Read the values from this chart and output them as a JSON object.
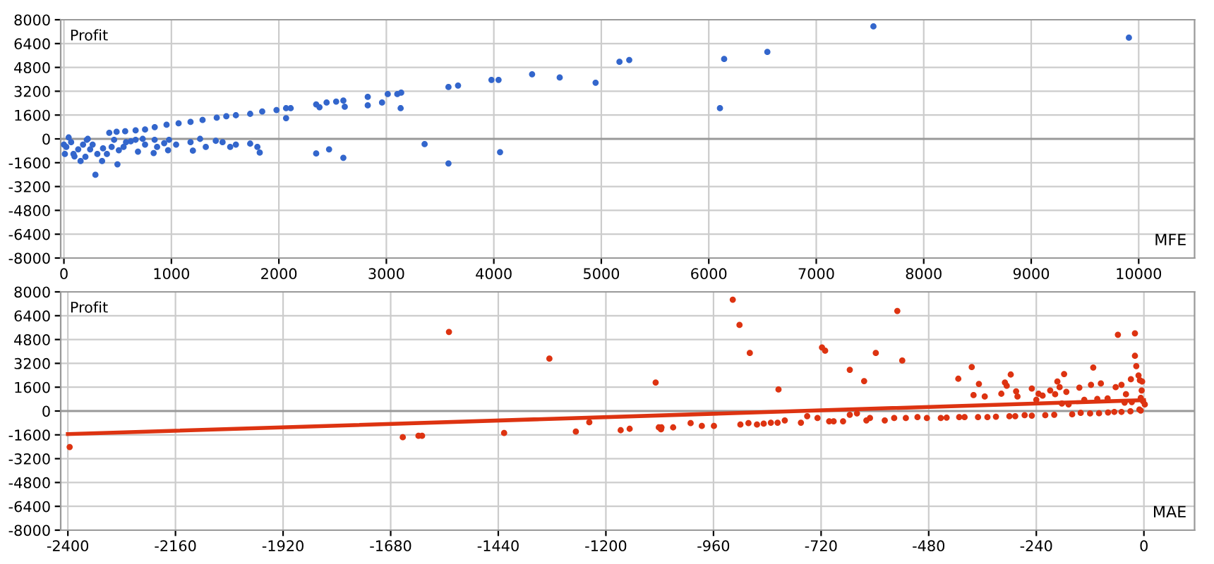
{
  "chart_data": [
    {
      "type": "scatter",
      "xlabel": "MFE",
      "ylabel": "Profit",
      "xlim": [
        -30,
        10520
      ],
      "ylim": [
        -8000,
        8000
      ],
      "xticks": [
        0,
        1000,
        2000,
        3000,
        4000,
        5000,
        6000,
        7000,
        8000,
        9000,
        10000
      ],
      "yticks": [
        -8000,
        -6400,
        -4800,
        -3200,
        -1600,
        0,
        1600,
        3200,
        4800,
        6400,
        8000
      ],
      "grid": true,
      "series": [
        {
          "color": "#3366cc",
          "marker": "circle",
          "x": [
            422,
            490,
            570,
            667,
            755,
            845,
            955,
            1067,
            1178,
            1290,
            1422,
            1511,
            1600,
            1733,
            1845,
            1978,
            2067,
            2110,
            2067,
            2347,
            2378,
            2444,
            2533,
            2600,
            2613,
            2827,
            2827,
            2960,
            3013,
            3102,
            3138,
            3133,
            3578,
            3667,
            3978,
            4044,
            4356,
            4613,
            4947,
            5169,
            5260,
            6104,
            6143,
            6545,
            7532,
            9909,
            3356,
            3578,
            4058,
            2347,
            2467,
            2600,
            1822,
            1800,
            1733,
            1600,
            1547,
            1476,
            1413,
            1320,
            1200,
            1178,
            1267,
            1044,
            969,
            933,
            867,
            835,
            755,
            733,
            689,
            622,
            555,
            511,
            498,
            467,
            400,
            364,
            355,
            311,
            293,
            267,
            213,
            200,
            155,
            98,
            133,
            67,
            22,
            9,
            0,
            89,
            178,
            244,
            444,
            578,
            667,
            844,
            978,
            44,
            222
          ],
          "values": [
            410,
            475,
            510,
            570,
            630,
            790,
            950,
            1045,
            1140,
            1270,
            1425,
            1520,
            1585,
            1680,
            1840,
            1935,
            2060,
            2060,
            1395,
            2315,
            2125,
            2440,
            2505,
            2570,
            2155,
            2820,
            2250,
            2440,
            3010,
            3010,
            3105,
            2060,
            3485,
            3580,
            3960,
            3960,
            4340,
            4120,
            3770,
            5175,
            5300,
            2065,
            5365,
            5840,
            7555,
            6795,
            -350,
            -1650,
            -890,
            -980,
            -700,
            -1270,
            -920,
            -540,
            -320,
            -380,
            -540,
            -220,
            -130,
            -540,
            -790,
            -220,
            0,
            -380,
            -760,
            -285,
            -540,
            -950,
            -380,
            0,
            -855,
            -160,
            -540,
            -760,
            -1710,
            -60,
            -1015,
            -635,
            -1490,
            -1015,
            -2410,
            -380,
            -60,
            -1205,
            -1490,
            -1175,
            -700,
            -220,
            -540,
            -1015,
            -380,
            -1015,
            -380,
            -700,
            -540,
            -220,
            -60,
            -60,
            -60,
            95,
            0
          ]
        }
      ]
    },
    {
      "type": "scatter",
      "xlabel": "MAE",
      "ylabel": "Profit",
      "xlim": [
        -2416,
        113
      ],
      "ylim": [
        -8000,
        8000
      ],
      "xticks": [
        -2400,
        -2160,
        -1920,
        -1680,
        -1440,
        -1200,
        -960,
        -720,
        -480,
        -240,
        0
      ],
      "yticks": [
        -8000,
        -6400,
        -4800,
        -3200,
        -1600,
        0,
        1600,
        3200,
        4800,
        6400,
        8000
      ],
      "grid": true,
      "series": [
        {
          "color": "#dd3311",
          "marker": "circle",
          "x": [
            -2396,
            -1653,
            -1618,
            -1610,
            -1550,
            -1427,
            -1326,
            -1267,
            -1237,
            -1167,
            -1077,
            -1147,
            -1089,
            -1082,
            -1076,
            -1050,
            -1011,
            -986,
            -959,
            -917,
            -902,
            -900,
            -882,
            -879,
            -863,
            -848,
            -832,
            -817,
            -815,
            -801,
            -765,
            -751,
            -728,
            -718,
            -711,
            -702,
            -692,
            -671,
            -656,
            -656,
            -640,
            -624,
            -619,
            -611,
            -598,
            -578,
            -557,
            -550,
            -539,
            -531,
            -505,
            -484,
            -453,
            -414,
            -412,
            -384,
            -380,
            -370,
            -368,
            -355,
            -349,
            -318,
            -310,
            -306,
            -297,
            -287,
            -285,
            -282,
            -266,
            -250,
            -240,
            -235,
            -226,
            -209,
            -198,
            -193,
            -188,
            -183,
            -178,
            -173,
            -168,
            -144,
            -141,
            -133,
            -118,
            -113,
            -104,
            -96,
            -81,
            -63,
            -66,
            -58,
            -50,
            -43,
            -40,
            -29,
            -27,
            -20,
            -20,
            -17,
            -12,
            -9,
            -5,
            -4,
            -7,
            -2,
            2,
            -7,
            -440,
            -400,
            -330,
            -300,
            -250,
            -220,
            -200,
            -160,
            -120,
            -100,
            -80,
            -50,
            -30,
            -10
          ],
          "values": [
            -2420,
            -1760,
            -1665,
            -1665,
            5310,
            -1475,
            3520,
            -1380,
            -755,
            -1290,
            -1225,
            -1195,
            1915,
            -1100,
            -1100,
            -1100,
            -815,
            -1005,
            -1005,
            7475,
            5780,
            -910,
            -815,
            3895,
            -910,
            -850,
            -785,
            -785,
            1445,
            -630,
            -785,
            -345,
            -470,
            4270,
            4050,
            -690,
            -690,
            -690,
            2765,
            -250,
            -155,
            2010,
            -630,
            -470,
            3895,
            -630,
            -470,
            6720,
            3390,
            -470,
            -410,
            -470,
            -470,
            2165,
            -410,
            2950,
            1070,
            -410,
            1820,
            975,
            -410,
            1160,
            1915,
            1695,
            2450,
            -345,
            1320,
            975,
            -280,
            1505,
            755,
            1160,
            1035,
            1380,
            1130,
            1980,
            1600,
            500,
            2480,
            1285,
            440,
            1570,
            -125,
            755,
            1760,
            2920,
            815,
            1850,
            850,
            1600,
            -60,
            5120,
            1760,
            565,
            1130,
            2135,
            600,
            5215,
            3705,
            3015,
            2385,
            2070,
            1380,
            1980,
            30,
            660,
            440,
            880,
            -440,
            -410,
            -380,
            -350,
            -310,
            -280,
            -250,
            -220,
            -160,
            -150,
            -100,
            -60,
            -20,
            100
          ]
        },
        {
          "type": "line",
          "color": "#dd3311",
          "x": [
            -2400,
            0
          ],
          "values": [
            -1550,
            730
          ]
        }
      ]
    }
  ]
}
